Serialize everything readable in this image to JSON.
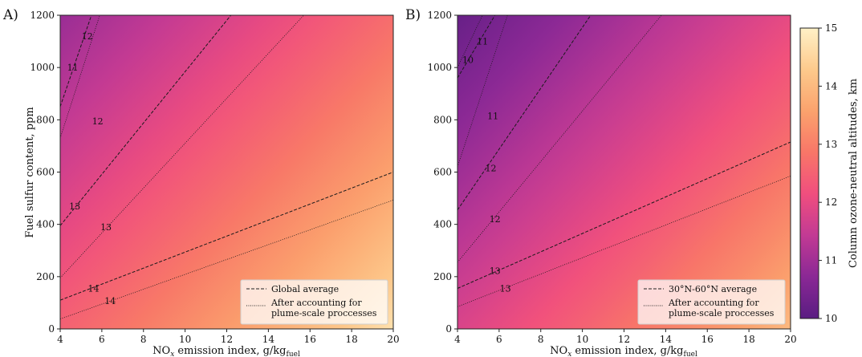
{
  "chart_data": [
    {
      "type": "heatmap",
      "panel_label": "A)",
      "xlabel": "NO",
      "xlabel_sub": "x",
      "xlabel_mid": " emission index, g/kg",
      "xlabel_sub2": "fuel",
      "ylabel": "Fuel sulfur content, ppm",
      "xlim": [
        4,
        20
      ],
      "ylim": [
        0,
        1200
      ],
      "xticks": [
        "4",
        "6",
        "8",
        "10",
        "12",
        "14",
        "16",
        "18",
        "20"
      ],
      "yticks": [
        "0",
        "200",
        "400",
        "600",
        "800",
        "1000",
        "1200"
      ],
      "field_gradient": {
        "min_altitude_km": 10.9,
        "max_altitude_km": 14.7
      },
      "contours": [
        {
          "style": "dashed",
          "level": "11",
          "x": [
            4,
            5.5
          ],
          "y": [
            850,
            1200
          ]
        },
        {
          "style": "dashed",
          "level": "12",
          "x": [
            4,
            12.2
          ],
          "y": [
            395,
            1200
          ]
        },
        {
          "style": "dashed",
          "level": "14",
          "x": [
            4,
            20
          ],
          "y": [
            110,
            600
          ]
        },
        {
          "style": "dotted",
          "level": "12",
          "x": [
            4,
            5.9
          ],
          "y": [
            730,
            1200
          ]
        },
        {
          "style": "dotted",
          "level": "13",
          "x": [
            4,
            15.7
          ],
          "y": [
            195,
            1200
          ]
        },
        {
          "style": "dotted",
          "level": "14",
          "x": [
            4,
            20
          ],
          "y": [
            38,
            493
          ]
        }
      ],
      "contour_labels": [
        {
          "text": "12",
          "x": 5.3,
          "y": 1120
        },
        {
          "text": "11",
          "x": 4.6,
          "y": 1000
        },
        {
          "text": "12",
          "x": 5.8,
          "y": 795
        },
        {
          "text": "13",
          "x": 4.7,
          "y": 470
        },
        {
          "text": "13",
          "x": 6.2,
          "y": 390
        },
        {
          "text": "14",
          "x": 5.6,
          "y": 155
        },
        {
          "text": "14",
          "x": 6.4,
          "y": 108
        }
      ],
      "legend_position": "lower-right",
      "legend": [
        {
          "style": "dashed",
          "label": "Global average"
        },
        {
          "style": "dotted",
          "label": "After accounting for plume-scale proccesses"
        }
      ]
    },
    {
      "type": "heatmap",
      "panel_label": "B)",
      "xlabel": "NO",
      "xlabel_sub": "x",
      "xlabel_mid": " emission index, g/kg",
      "xlabel_sub2": "fuel",
      "ylabel": "",
      "xlim": [
        4,
        20
      ],
      "ylim": [
        0,
        1200
      ],
      "xticks": [
        "4",
        "6",
        "8",
        "10",
        "12",
        "14",
        "16",
        "18",
        "20"
      ],
      "yticks": [
        "0",
        "200",
        "400",
        "600",
        "800",
        "1000",
        "1200"
      ],
      "field_gradient": {
        "min_altitude_km": 10.2,
        "max_altitude_km": 14.0
      },
      "contours": [
        {
          "style": "dashed",
          "level": "11",
          "x": [
            4,
            5.8
          ],
          "y": [
            960,
            1200
          ]
        },
        {
          "style": "dashed",
          "level": "12",
          "x": [
            4,
            10.4
          ],
          "y": [
            455,
            1200
          ]
        },
        {
          "style": "dashed",
          "level": "13",
          "x": [
            4,
            20
          ],
          "y": [
            155,
            715
          ]
        },
        {
          "style": "dotted",
          "level": "10",
          "x": [
            4,
            5.2
          ],
          "y": [
            1000,
            1200
          ]
        },
        {
          "style": "dotted",
          "level": "11",
          "x": [
            4,
            6.4
          ],
          "y": [
            620,
            1200
          ]
        },
        {
          "style": "dotted",
          "level": "12",
          "x": [
            4,
            13.8
          ],
          "y": [
            255,
            1200
          ]
        },
        {
          "style": "dotted",
          "level": "13",
          "x": [
            4,
            20
          ],
          "y": [
            85,
            585
          ]
        }
      ],
      "contour_labels": [
        {
          "text": "11",
          "x": 5.2,
          "y": 1100
        },
        {
          "text": "10",
          "x": 4.5,
          "y": 1030
        },
        {
          "text": "11",
          "x": 5.7,
          "y": 815
        },
        {
          "text": "12",
          "x": 5.6,
          "y": 615
        },
        {
          "text": "12",
          "x": 5.8,
          "y": 420
        },
        {
          "text": "13",
          "x": 5.8,
          "y": 222
        },
        {
          "text": "13",
          "x": 6.3,
          "y": 155
        }
      ],
      "legend_position": "lower-right",
      "legend": [
        {
          "style": "dashed",
          "label": "30°N-60°N average"
        },
        {
          "style": "dotted",
          "label": "After accounting for plume-scale proccesses"
        }
      ]
    }
  ],
  "colorbar": {
    "label": "Column ozone-neutral altitudes, km",
    "range": [
      10,
      15
    ],
    "ticks": [
      "10",
      "11",
      "12",
      "13",
      "14",
      "15"
    ],
    "colors": [
      "#5a1d82",
      "#8a2895",
      "#c23a94",
      "#f04e7e",
      "#f87668",
      "#fba26d",
      "#fdca8c",
      "#fff1c7"
    ]
  }
}
